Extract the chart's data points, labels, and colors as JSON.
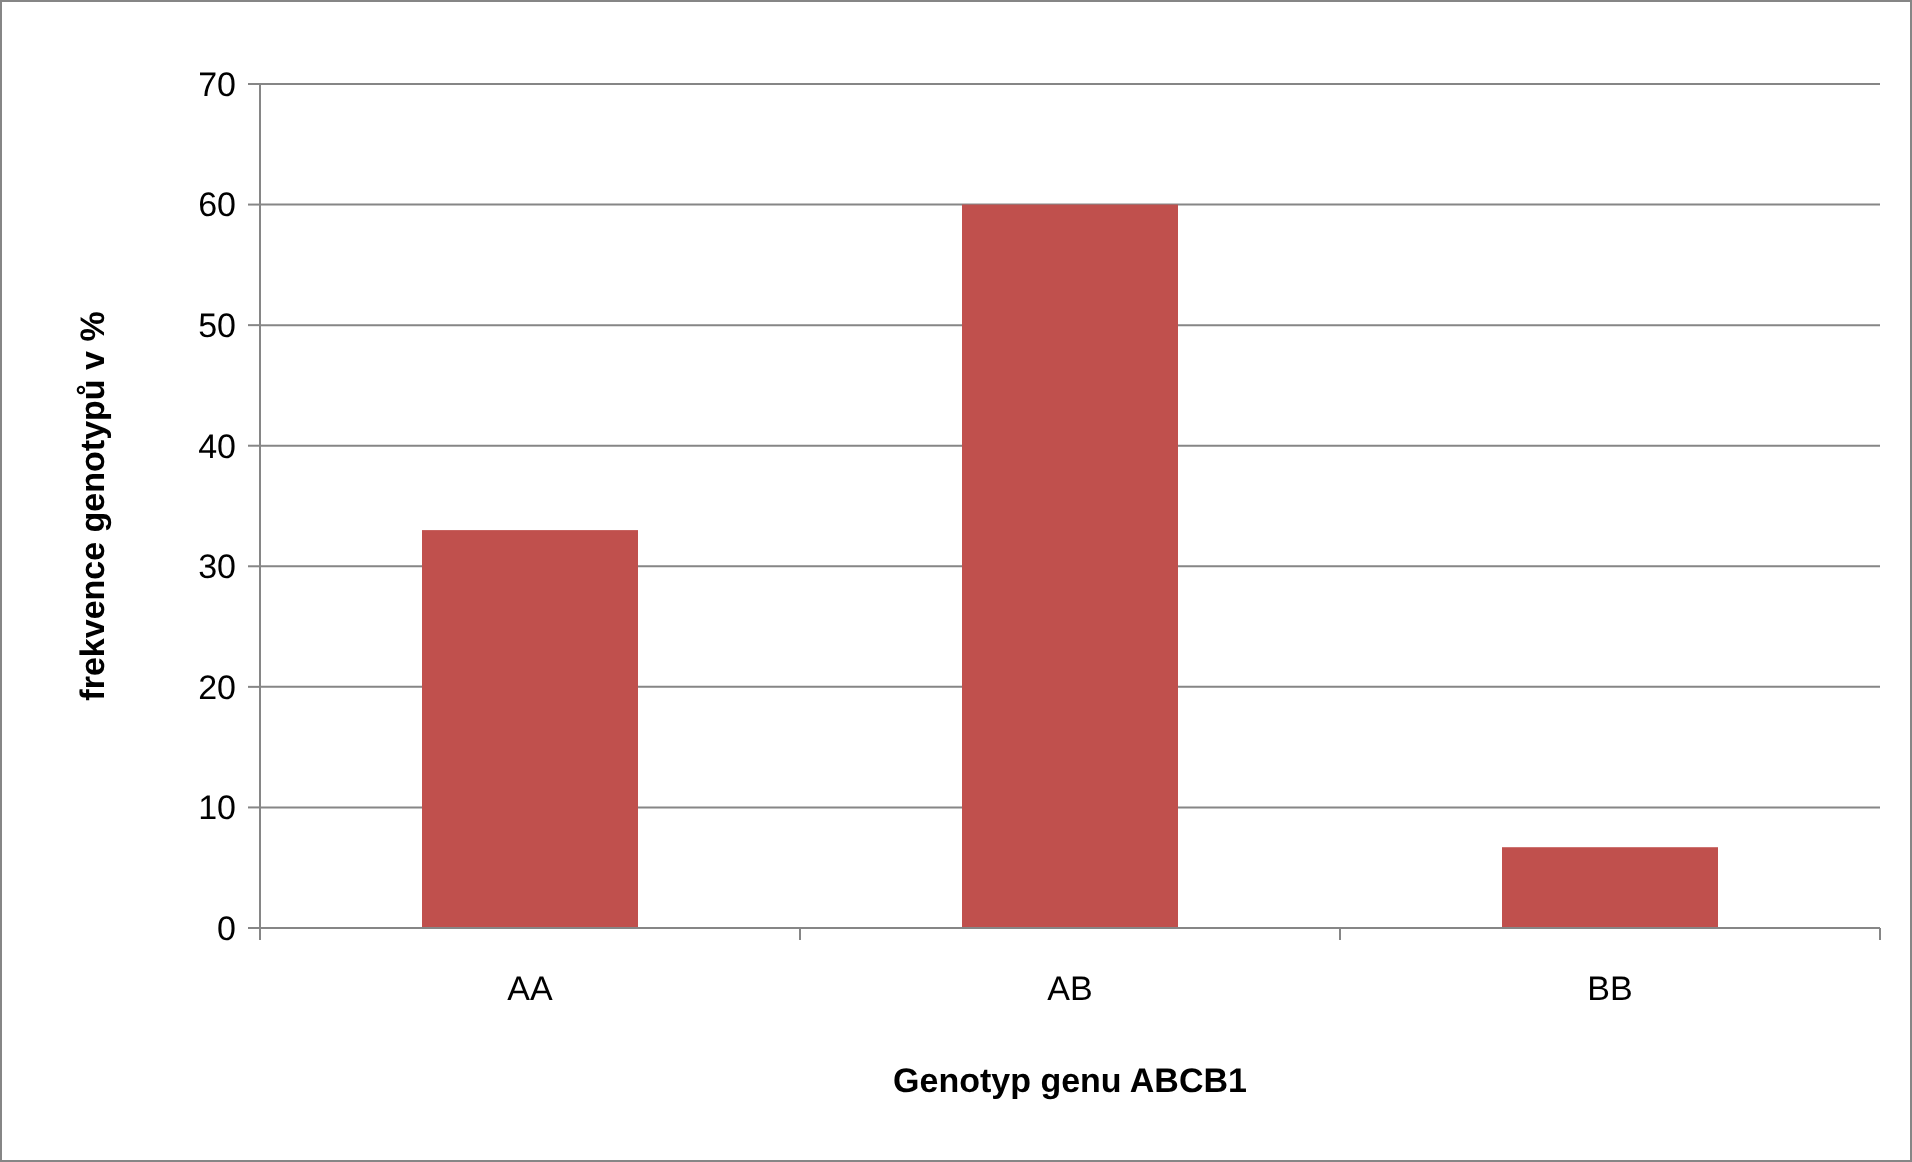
{
  "chart_data": {
    "type": "bar",
    "xlabel": "Genotyp genu ABCB1",
    "ylabel": "frekvence genotypů v %",
    "categories": [
      "AA",
      "AB",
      "BB"
    ],
    "values": [
      33,
      60,
      6.7
    ],
    "color": "#c0504d",
    "ylim": [
      0,
      70
    ],
    "yticks": [
      0,
      10,
      20,
      30,
      40,
      50,
      60,
      70
    ],
    "grid": "y"
  }
}
